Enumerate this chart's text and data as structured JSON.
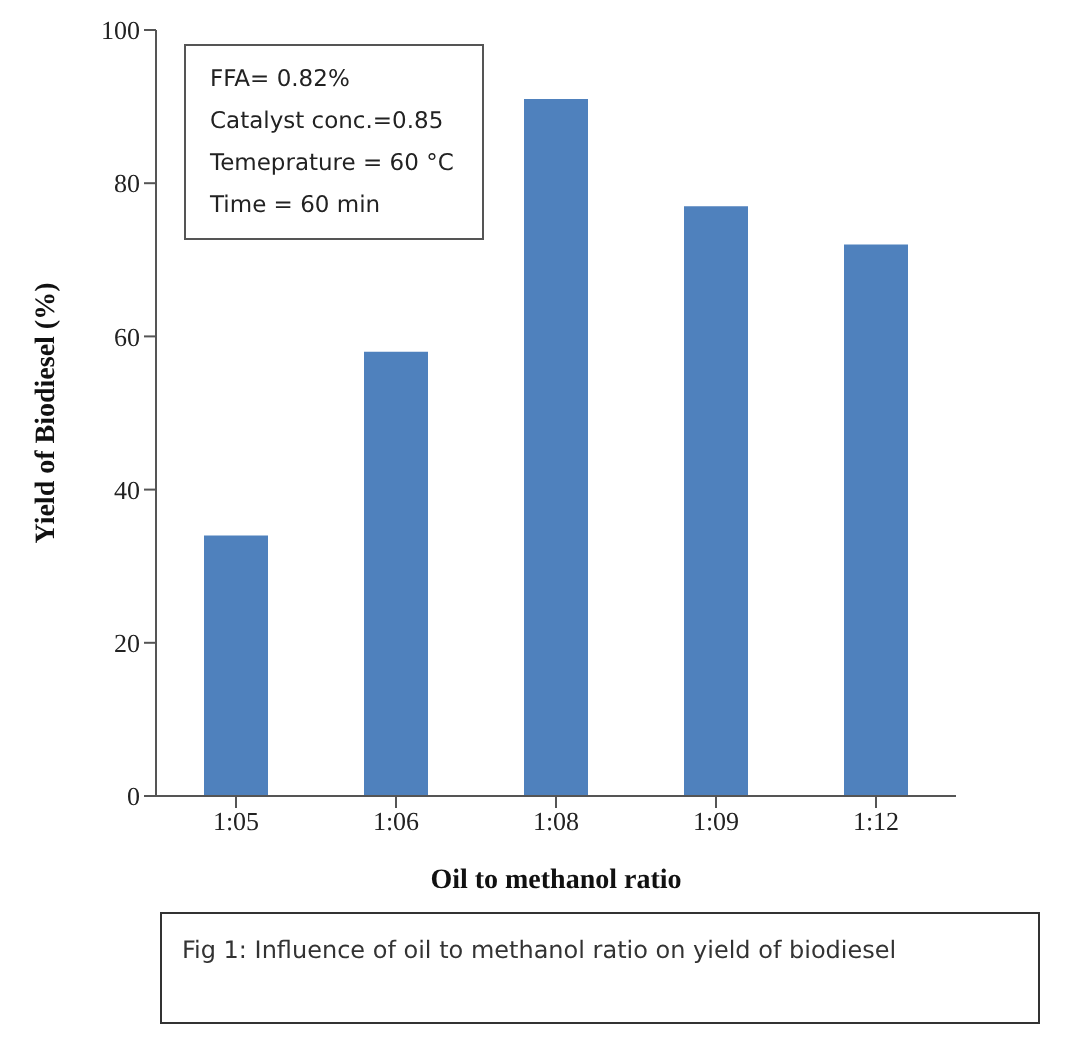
{
  "chart_data": {
    "type": "bar",
    "xlabel": "Oil to methanol ratio",
    "ylabel": "Yield of Biodiesel (%)",
    "categories": [
      "1:05",
      "1:06",
      "1:08",
      "1:09",
      "1:12"
    ],
    "values": [
      34,
      58,
      91,
      77,
      72
    ],
    "color": "#4f81bd",
    "ylim": [
      0,
      100
    ],
    "yticks": [
      0,
      20,
      40,
      60,
      80,
      100
    ],
    "grid": false,
    "annotations": [
      "FFA= 0.82%",
      "Catalyst conc.=0.85",
      "Temeprature = 60 °C",
      "Time = 60 min",
      "Fig 1: Influence of oil to methanol ratio on yield of biodiesel"
    ]
  }
}
